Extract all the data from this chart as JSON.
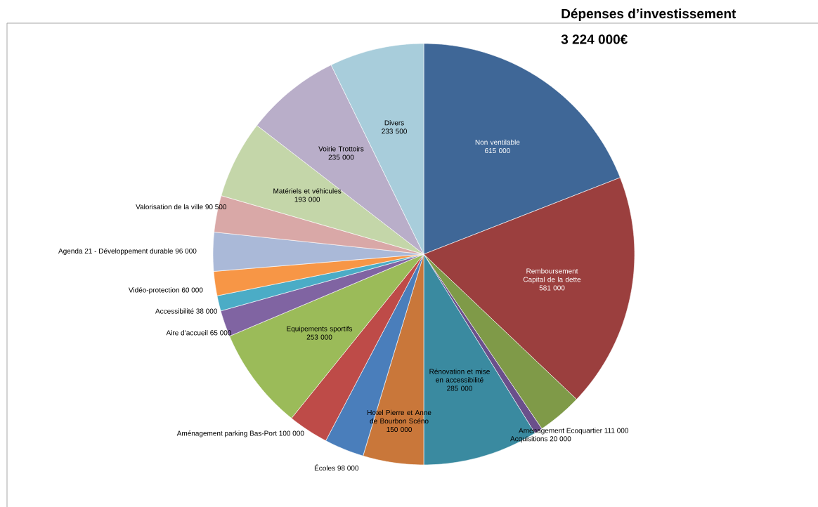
{
  "chart_data": {
    "type": "pie",
    "title": "Dépenses d’investissement",
    "subtitle": "3 224 000€",
    "categories": [
      "Non ventilable",
      "Remboursement Capital de la dette",
      "Aménagement Ecoquartier",
      "Acquisitions",
      "Rénovation et mise en accessibilité",
      "Hotel Pierre et Anne de Bourbon Scéno",
      "Écoles",
      "Aménagement parking Bas-Port",
      "Equipements sportifs",
      "Aire d’accueil",
      "Accessibilité",
      "Vidéo-protection",
      "Agenda 21 - Développement durable",
      "Valorisation de la ville",
      "Matériels et véhicules",
      "Voirie Trottoirs",
      "Divers"
    ],
    "values": [
      615000,
      581000,
      111000,
      20000,
      285000,
      150000,
      98000,
      100000,
      253000,
      65000,
      38000,
      60000,
      96000,
      90500,
      193000,
      235000,
      233500
    ],
    "value_labels": [
      "615 000",
      "581 000",
      "111 000",
      "20 000",
      "285 000",
      "150 000",
      "98 000",
      "100 000",
      "253 000",
      "65 000",
      "38 000",
      "60 000",
      "96 000",
      "90 500",
      "193 000",
      "235 000",
      "233 500"
    ],
    "colors": [
      "#3f6797",
      "#9b3f3e",
      "#7f9a48",
      "#6a4f8b",
      "#3a8aa0",
      "#c9773a",
      "#4a7ebb",
      "#be4b48",
      "#9bbb59",
      "#8064a2",
      "#4bacc6",
      "#f79646",
      "#aab9d8",
      "#d9a8a7",
      "#c4d6a9",
      "#b9aec9",
      "#a8cddb"
    ]
  }
}
